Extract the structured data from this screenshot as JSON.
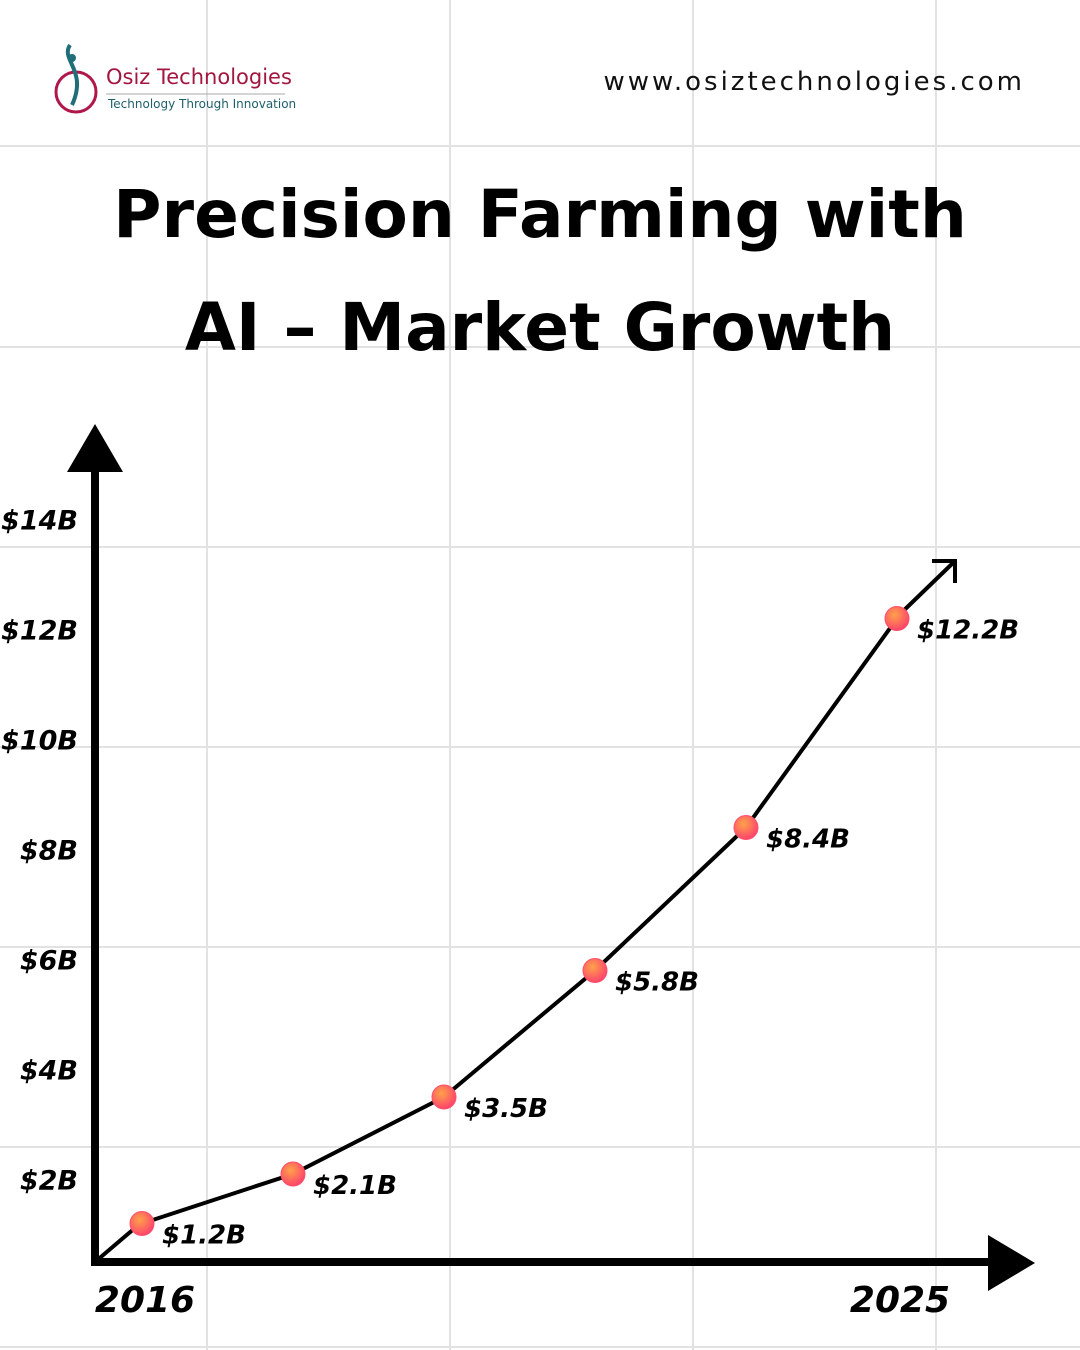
{
  "header": {
    "logo_name": "Osiz Technologies",
    "logo_tagline": "Technology Through Innovation",
    "website": "www.osiztechnologies.com"
  },
  "chart_data": {
    "type": "line",
    "title": [
      "Precision Farming with",
      "AI – Market Growth"
    ],
    "categories": [
      "2016",
      null,
      null,
      null,
      null,
      "2025"
    ],
    "series": [
      {
        "color": "#000000",
        "marker_color": "#ff4f6a",
        "values": [
          1.2,
          2.1,
          3.5,
          5.8,
          8.4,
          12.2
        ],
        "value_labels": [
          "$1.2B",
          "$2.1B",
          "$3.5B",
          "$5.8B",
          "$8.4B",
          "$12.2B"
        ]
      }
    ],
    "ylim": [
      0.5,
      15.7
    ],
    "yticks": [
      {
        "value": 2,
        "label": "$2B"
      },
      {
        "value": 4,
        "label": "$4B"
      },
      {
        "value": 6,
        "label": "$6B"
      },
      {
        "value": 8,
        "label": "$8B"
      },
      {
        "value": 10,
        "label": "$10B"
      },
      {
        "value": 12,
        "label": "$12B"
      },
      {
        "value": 14,
        "label": "$14B"
      }
    ]
  }
}
